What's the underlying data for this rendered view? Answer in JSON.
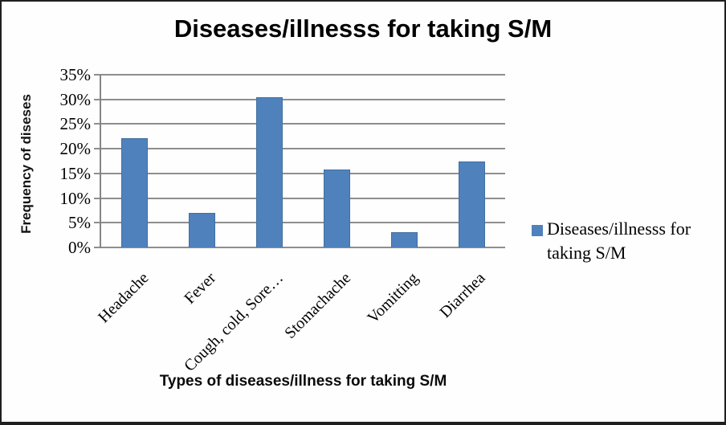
{
  "chart_data": {
    "type": "bar",
    "title": "Diseases/illnesss for taking S/M",
    "ylabel": "Frequency of diseses",
    "xlabel": "Types of diseases/illness for taking S/M",
    "categories": [
      "Headache",
      "Fever",
      "Cough, cold, Sore…",
      "Stomachache",
      "Vomitting",
      "Diarrhea"
    ],
    "values": [
      22.2,
      7,
      30.4,
      15.8,
      3.1,
      17.4
    ],
    "unit": "%",
    "ylim": [
      0,
      35
    ],
    "yticks": [
      0,
      5,
      10,
      15,
      20,
      25,
      30,
      35
    ],
    "ytick_labels": [
      "0%",
      "5%",
      "10%",
      "15%",
      "20%",
      "25%",
      "30%",
      "35%"
    ],
    "grid": true,
    "legend": {
      "position": "right",
      "label": "Diseases/illnesss for taking S/M",
      "lines": [
        "Diseases/illnesss for",
        "taking S/M"
      ],
      "marker_color": "#4F81BD"
    },
    "colors": {
      "bar_fill": "#4F81BD",
      "bar_border": "#41709f",
      "gridline": "#8e8e8e",
      "axis": "#858585",
      "text": "#000000"
    }
  }
}
